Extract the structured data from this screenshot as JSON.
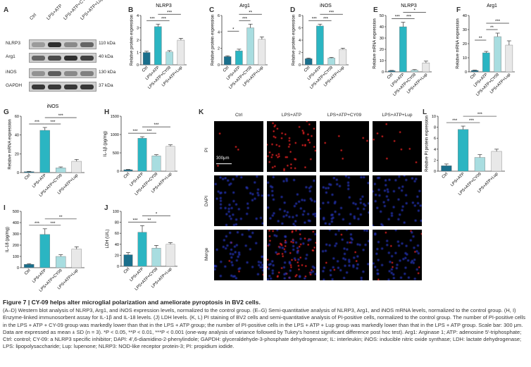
{
  "panel_labels": {
    "A": "A",
    "B": "B",
    "C": "C",
    "D": "D",
    "E": "E",
    "F": "F",
    "G": "G",
    "H": "H",
    "I": "I",
    "J": "J",
    "K": "K",
    "L": "L"
  },
  "western_blot": {
    "lanes": [
      "Ctrl",
      "LPS+ATP",
      "LPS+ATP+CY09",
      "LPS+ATP+Lup"
    ],
    "rows": [
      {
        "protein": "NLRP3",
        "kda": "110 kDa",
        "intensity": [
          0.25,
          0.85,
          0.35,
          0.55
        ]
      },
      {
        "protein": "Arg1",
        "kda": "40 kDa",
        "intensity": [
          0.55,
          0.7,
          0.85,
          0.75
        ]
      },
      {
        "protein": "iNOS",
        "kda": "130 kDa",
        "intensity": [
          0.3,
          0.6,
          0.35,
          0.4
        ]
      },
      {
        "protein": "GAPDH",
        "kda": "37 kDa",
        "intensity": [
          0.8,
          0.8,
          0.8,
          0.8
        ]
      }
    ]
  },
  "colors": {
    "ctrl": "#1a6f8c",
    "lpsatp": "#2bb5c2",
    "cy09": "#a8dde0",
    "lup": "#e8e8e8",
    "sig": "#333333"
  },
  "chart_data": [
    {
      "id": "B",
      "type": "bar",
      "title": "NLRP3",
      "ylabel": "Relative protein expression",
      "categories": [
        "Ctrl",
        "LPS+ATP",
        "LPS+ATP+CY09",
        "LPS+ATP+Lup"
      ],
      "values": [
        1.0,
        3.1,
        1.05,
        2.0
      ],
      "errors": [
        0.1,
        0.2,
        0.1,
        0.15
      ],
      "ylim": [
        0,
        4
      ],
      "yticks": [
        0,
        1,
        2,
        3,
        4
      ],
      "sig": [
        "***",
        "***",
        "***"
      ]
    },
    {
      "id": "C",
      "type": "bar",
      "title": "Arg1",
      "ylabel": "Relative protein expression",
      "categories": [
        "Ctrl",
        "LPS+ATP",
        "LPS+ATP+CY09",
        "LPS+ATP+Lup"
      ],
      "values": [
        1.0,
        1.7,
        4.5,
        3.1
      ],
      "errors": [
        0.1,
        0.2,
        0.45,
        0.3
      ],
      "ylim": [
        0,
        6
      ],
      "yticks": [
        0,
        2,
        4,
        6
      ],
      "sig": [
        "*",
        "***",
        "**"
      ]
    },
    {
      "id": "D",
      "type": "bar",
      "title": "iNOS",
      "ylabel": "Relative protein expression",
      "categories": [
        "Ctrl",
        "LPS+ATP",
        "LPS+ATP+CY09",
        "LPS+ATP+Lup"
      ],
      "values": [
        1.0,
        6.3,
        1.1,
        2.5
      ],
      "errors": [
        0.1,
        0.3,
        0.1,
        0.2
      ],
      "ylim": [
        0,
        8
      ],
      "yticks": [
        0,
        2,
        4,
        6,
        8
      ],
      "sig": [
        "***",
        "***",
        "***"
      ]
    },
    {
      "id": "E",
      "type": "bar",
      "title": "NLRP3",
      "ylabel": "Relative mRNA expression",
      "categories": [
        "Ctrl",
        "LPS+ATP",
        "LPS+ATP+CY09",
        "LPS+ATP+Lup"
      ],
      "values": [
        1,
        40,
        1.5,
        8
      ],
      "errors": [
        0.3,
        4,
        0.5,
        1.5
      ],
      "ylim": [
        0,
        50
      ],
      "yticks": [
        0,
        10,
        20,
        30,
        40,
        50
      ],
      "sig": [
        "***",
        "***",
        "*"
      ]
    },
    {
      "id": "F",
      "type": "bar",
      "title": "Arg1",
      "ylabel": "Relative mRNA expression",
      "categories": [
        "Ctrl",
        "LPS+ATP",
        "LPS+ATP+CY09",
        "LPS+ATP+Lup"
      ],
      "values": [
        1,
        13.5,
        25,
        19
      ],
      "errors": [
        0.3,
        1,
        2.5,
        3
      ],
      "ylim": [
        0,
        40
      ],
      "yticks": [
        0,
        10,
        20,
        30,
        40
      ],
      "sig": [
        "**",
        "**",
        "***"
      ]
    },
    {
      "id": "G",
      "type": "bar",
      "title": "iNOS",
      "ylabel": "Relative mRNA expression",
      "categories": [
        "Ctrl",
        "LPS+ATP",
        "LPS+ATP+CY09",
        "LPS+ATP+Lup"
      ],
      "values": [
        1,
        45,
        5,
        12
      ],
      "errors": [
        0.3,
        3,
        1,
        2
      ],
      "ylim": [
        0,
        60
      ],
      "yticks": [
        0,
        20,
        40,
        60
      ],
      "sig": [
        "***",
        "***",
        "***"
      ]
    },
    {
      "id": "H",
      "type": "bar",
      "title": "",
      "ylabel": "IL-1β (pg/mg)",
      "categories": [
        "Ctrl",
        "LPS+ATP",
        "LPS+ATP+CY09",
        "LPS+ATP+Lup"
      ],
      "values": [
        40,
        900,
        420,
        680
      ],
      "errors": [
        10,
        40,
        30,
        40
      ],
      "ylim": [
        0,
        1500
      ],
      "yticks": [
        0,
        500,
        1000,
        1500
      ],
      "sig": [
        "***",
        "***",
        "***"
      ]
    },
    {
      "id": "I",
      "type": "bar",
      "title": "",
      "ylabel": "IL-18 (pg/mg)",
      "categories": [
        "Ctrl",
        "LPS+ATP",
        "LPS+ATP+CY09",
        "LPS+ATP+Lup"
      ],
      "values": [
        30,
        295,
        100,
        165
      ],
      "errors": [
        5,
        50,
        15,
        20
      ],
      "ylim": [
        0,
        500
      ],
      "yticks": [
        0,
        100,
        200,
        300,
        400,
        500
      ],
      "sig": [
        "***",
        "***",
        "**"
      ]
    },
    {
      "id": "J",
      "type": "bar",
      "title": "",
      "ylabel": "LDH (U/L)",
      "categories": [
        "Ctrl",
        "LPS+ATP",
        "LPS+ATP+CY09",
        "LPS+ATP+Lup"
      ],
      "values": [
        21,
        62,
        33,
        40
      ],
      "errors": [
        4,
        12,
        5,
        3
      ],
      "ylim": [
        0,
        100
      ],
      "yticks": [
        0,
        20,
        40,
        60,
        80,
        100
      ],
      "sig": [
        "***",
        "**",
        "*"
      ]
    },
    {
      "id": "L",
      "type": "bar",
      "title": "",
      "ylabel": "Relative PI protein expression",
      "categories": [
        "Ctrl",
        "LPS+ATP",
        "LPS+ATP+CY09",
        "LPS+ATP+Lup"
      ],
      "values": [
        1.0,
        7.6,
        2.5,
        3.6
      ],
      "errors": [
        0.3,
        0.6,
        0.5,
        0.4
      ],
      "ylim": [
        0,
        10
      ],
      "yticks": [
        0,
        2,
        4,
        6,
        8,
        10
      ],
      "sig": [
        "***",
        "***",
        "***"
      ]
    }
  ],
  "microscopy": {
    "columns": [
      "Ctrl",
      "LPS+ATP",
      "LPS+ATP+CY09",
      "LPS+ATP+Lup"
    ],
    "rows": [
      "PI",
      "DAPI",
      "Merge"
    ],
    "scalebar": "300μm",
    "red_density": [
      4,
      60,
      6,
      10
    ]
  },
  "caption": {
    "title": "Figure 7 | CY-09 helps alter microglial polarization and ameliorate pyroptosis in BV2 cells.",
    "body": "(A–D) Western blot analysis of NLRP3, Arg1, and iNOS expression levels, normalized to the control group. (E–G) Semi-quantitative analysis of NLRP3, Arg1, and iNOS mRNA levels, normalized to the control group. (H, I) Enzyme-linked immunosorbent assay for IL-1β and IL-18 levels. (J) LDH levels. (K, L) PI staining of BV2 cells and semi-quantitative analysis of PI-positive cells, normalized to the control group. The number of PI-positive cells in the LPS + ATP + CY-09 group was markedly lower than that in the LPS + ATP group; the number of PI-positive cells in the LPS + ATP + Lup group was markedly lower than that in the LPS + ATP group. Scale bar: 300 μm. Data are expressed as mean ± SD (n = 3). *P < 0.05, **P < 0.01, ***P < 0.001 (one-way analysis of variance followed by Tukey's honest significant difference post hoc test). Arg1: Arginase 1; ATP: adenosine 5′-triphosphate; Ctrl: control; CY-09: a NLRP3 specific inhibitor; DAPI: 4′,6-diamidino-2-phenylindole; GAPDH: glyceraldehyde-3-phosphate dehydrogenase; IL: interleukin; iNOS: inducible nitric oxide synthase; LDH: lactate dehydrogenase; LPS: lipopolysaccharide; Lup: lupenone; NLRP3: NOD-like receptor protein-3; PI: propidium iodide."
  }
}
